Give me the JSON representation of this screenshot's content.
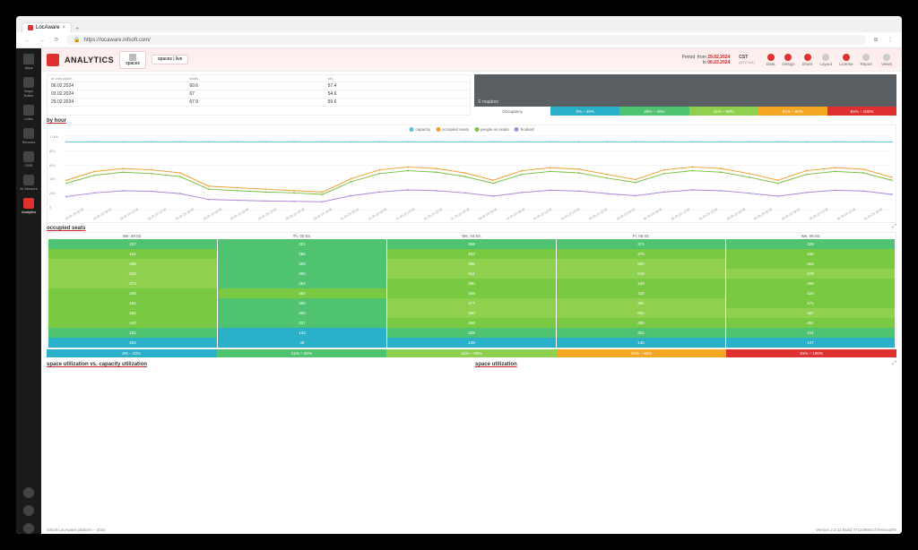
{
  "browser": {
    "tab_title": "LocAware",
    "url": "https://locaware.infsoft.com/"
  },
  "siderail": {
    "items": [
      {
        "label": "Apps",
        "icon": "apps-icon"
      },
      {
        "label": "Maps Editor",
        "icon": "map-icon"
      },
      {
        "label": "Links",
        "icon": "link-icon"
      },
      {
        "label": "Sensors",
        "icon": "sensor-icon"
      },
      {
        "label": "CMS",
        "icon": "cms-icon"
      },
      {
        "label": "AI Sensors",
        "icon": "ai-icon"
      },
      {
        "label": "Analytics",
        "icon": "analytics-icon",
        "active": true
      }
    ],
    "bottom": [
      {
        "label": "",
        "icon": "help-icon"
      },
      {
        "label": "",
        "icon": "notify-icon"
      },
      {
        "label": "",
        "icon": "settings-icon"
      }
    ]
  },
  "topbar": {
    "title": "ANALYTICS",
    "tabs": [
      {
        "label": "spaces"
      },
      {
        "label": "spaces | live"
      }
    ],
    "period": {
      "label": "Period",
      "from_label": "from",
      "from": "29.02.2024",
      "to_label": "to",
      "to": "06.03.2024"
    },
    "tz": {
      "label": "CST",
      "offset": "(UTC+01)"
    },
    "tools": [
      {
        "label": "Data",
        "red": true
      },
      {
        "label": "Design",
        "red": true
      },
      {
        "label": "Share",
        "red": true
      },
      {
        "label": "Layout",
        "red": false
      },
      {
        "label": "License",
        "red": true
      },
      {
        "label": "Report",
        "red": false
      },
      {
        "label": "Views",
        "red": false,
        "last": true
      }
    ]
  },
  "summary_table": {
    "headers": [
      "on any place",
      "seats",
      "util."
    ],
    "rows": [
      [
        "06.02.2024",
        "60.6",
        "57.4"
      ],
      [
        "03.02.2024",
        "67",
        "54.6"
      ],
      [
        "29.02.2024",
        "67.9",
        "59.6"
      ]
    ]
  },
  "map": {
    "brand": "© mapbox"
  },
  "occupancy_legend": {
    "label": "Occupancy",
    "bands": [
      {
        "label": "0% – 20%",
        "color": "#2bb0c9"
      },
      {
        "label": "20% – 40%",
        "color": "#4fc36f"
      },
      {
        "label": "41% – 60%",
        "color": "#8fd14f"
      },
      {
        "label": "61% – 80%",
        "color": "#f5a623"
      },
      {
        "label": "81% – 100%",
        "color": "#e03131"
      }
    ]
  },
  "byhour": {
    "title": "by hour",
    "legend": [
      "capacity",
      "occupied seats",
      "people on seats",
      "booked"
    ],
    "ylim": [
      0,
      1000
    ],
    "ytick_step": 200,
    "yticks": [
      "1 000",
      "800",
      "600",
      "400",
      "200",
      "0"
    ],
    "xlabels": [
      "28.02.24 06:00",
      "28.02.24 09:00",
      "28.02.24 12:00",
      "28.02.24 15:00",
      "28.02.24 18:00",
      "29.02.24 06:00",
      "29.02.24 09:00",
      "29.02.24 12:00",
      "29.02.24 15:00",
      "29.02.24 18:00",
      "01.03.24 06:00",
      "01.03.24 09:00",
      "01.03.24 12:00",
      "01.03.24 15:00",
      "01.03.24 18:00",
      "04.03.24 06:00",
      "04.03.24 09:00",
      "04.03.24 12:00",
      "04.03.24 15:00",
      "04.03.24 18:00",
      "05.03.24 06:00",
      "05.03.24 09:00",
      "05.03.24 12:00",
      "05.03.24 15:00",
      "05.03.24 18:00",
      "06.03.24 06:00",
      "06.03.24 09:00",
      "06.03.24 12:00",
      "06.03.24 15:00",
      "06.03.24 18:00"
    ],
    "series": {
      "capacity": {
        "color": "#5bc0de",
        "values": [
          920,
          920,
          920,
          920,
          920,
          920,
          920,
          920,
          920,
          920,
          920,
          920,
          920,
          920,
          920,
          920,
          920,
          920,
          920,
          920,
          920,
          920,
          920,
          920,
          920,
          920,
          920,
          920,
          920,
          920
        ]
      },
      "occupied": {
        "color": "#f0a030",
        "values": [
          400,
          520,
          560,
          540,
          500,
          320,
          300,
          280,
          260,
          240,
          420,
          540,
          580,
          560,
          500,
          400,
          530,
          570,
          550,
          480,
          410,
          540,
          580,
          560,
          490,
          400,
          530,
          570,
          550,
          440
        ]
      },
      "people": {
        "color": "#7bc043",
        "values": [
          360,
          470,
          510,
          490,
          450,
          280,
          260,
          240,
          230,
          210,
          380,
          490,
          530,
          510,
          450,
          360,
          480,
          520,
          500,
          430,
          370,
          490,
          530,
          510,
          440,
          360,
          480,
          520,
          500,
          400
        ]
      },
      "booked": {
        "color": "#b088d8",
        "values": [
          180,
          230,
          260,
          250,
          220,
          140,
          130,
          120,
          115,
          110,
          190,
          240,
          270,
          260,
          230,
          185,
          235,
          265,
          255,
          220,
          190,
          240,
          270,
          260,
          225,
          185,
          235,
          265,
          255,
          210
        ]
      }
    }
  },
  "occupied_seats": {
    "title": "occupied seats",
    "day_headers": [
      "We, 29.02.",
      "Th, 02.03.",
      "We, 04.03.",
      "Fr, 06.03.",
      "We, 06.03."
    ],
    "rows": [
      [
        {
          "v": "337",
          "c": "#4fc36f"
        },
        {
          "v": "321",
          "c": "#4fc36f"
        },
        {
          "v": "369",
          "c": "#4fc36f"
        },
        {
          "v": "371",
          "c": "#4fc36f"
        },
        {
          "v": "326",
          "c": "#4fc36f"
        }
      ],
      [
        {
          "v": "441",
          "c": "#7ac943"
        },
        {
          "v": "286",
          "c": "#4fc36f"
        },
        {
          "v": "452",
          "c": "#7ac943"
        },
        {
          "v": "470",
          "c": "#7ac943"
        },
        {
          "v": "438",
          "c": "#7ac943"
        }
      ],
      [
        {
          "v": "489",
          "c": "#8fd14f"
        },
        {
          "v": "305",
          "c": "#4fc36f"
        },
        {
          "v": "496",
          "c": "#8fd14f"
        },
        {
          "v": "502",
          "c": "#8fd14f"
        },
        {
          "v": "464",
          "c": "#7ac943"
        }
      ],
      [
        {
          "v": "503",
          "c": "#8fd14f"
        },
        {
          "v": "300",
          "c": "#4fc36f"
        },
        {
          "v": "511",
          "c": "#8fd14f"
        },
        {
          "v": "518",
          "c": "#8fd14f"
        },
        {
          "v": "478",
          "c": "#8fd14f"
        }
      ],
      [
        {
          "v": "473",
          "c": "#8fd14f"
        },
        {
          "v": "362",
          "c": "#4fc36f"
        },
        {
          "v": "390",
          "c": "#7ac943"
        },
        {
          "v": "449",
          "c": "#7ac943"
        },
        {
          "v": "456",
          "c": "#7ac943"
        }
      ],
      [
        {
          "v": "446",
          "c": "#7ac943"
        },
        {
          "v": "404",
          "c": "#7ac943"
        },
        {
          "v": "449",
          "c": "#7ac943"
        },
        {
          "v": "430",
          "c": "#7ac943"
        },
        {
          "v": "424",
          "c": "#7ac943"
        }
      ],
      [
        {
          "v": "461",
          "c": "#7ac943"
        },
        {
          "v": "306",
          "c": "#4fc36f"
        },
        {
          "v": "477",
          "c": "#8fd14f"
        },
        {
          "v": "491",
          "c": "#8fd14f"
        },
        {
          "v": "471",
          "c": "#7ac943"
        }
      ],
      [
        {
          "v": "462",
          "c": "#7ac943"
        },
        {
          "v": "300",
          "c": "#4fc36f"
        },
        {
          "v": "490",
          "c": "#8fd14f"
        },
        {
          "v": "502",
          "c": "#8fd14f"
        },
        {
          "v": "487",
          "c": "#8fd14f"
        }
      ],
      [
        {
          "v": "440",
          "c": "#7ac943"
        },
        {
          "v": "337",
          "c": "#4fc36f"
        },
        {
          "v": "458",
          "c": "#7ac943"
        },
        {
          "v": "465",
          "c": "#7ac943"
        },
        {
          "v": "451",
          "c": "#7ac943"
        }
      ],
      [
        {
          "v": "321",
          "c": "#4fc36f"
        },
        {
          "v": "143",
          "c": "#2bb0c9"
        },
        {
          "v": "329",
          "c": "#4fc36f"
        },
        {
          "v": "322",
          "c": "#4fc36f"
        },
        {
          "v": "311",
          "c": "#4fc36f"
        }
      ],
      [
        {
          "v": "254",
          "c": "#2bb0c9"
        },
        {
          "v": "48",
          "c": "#2bb0c9"
        },
        {
          "v": "139",
          "c": "#2bb0c9"
        },
        {
          "v": "136",
          "c": "#2bb0c9"
        },
        {
          "v": "147",
          "c": "#2bb0c9"
        }
      ]
    ],
    "bottom_bands": [
      {
        "label": "0% – 20%",
        "color": "#2bb0c9"
      },
      {
        "label": "21% – 40%",
        "color": "#4fc36f"
      },
      {
        "label": "41% – 60%",
        "color": "#8fd14f"
      },
      {
        "label": "61% – 80%",
        "color": "#f5a623"
      },
      {
        "label": "81% – 100%",
        "color": "#e03131"
      }
    ]
  },
  "bottom": {
    "left_title": "space utilization vs. capacity utilization",
    "right_title": "space utilization"
  },
  "footer": {
    "left": "infsoft LocAware platform – 2024",
    "right": "Version 2.3.12 Build 77123993ccf.RevisualTs"
  }
}
